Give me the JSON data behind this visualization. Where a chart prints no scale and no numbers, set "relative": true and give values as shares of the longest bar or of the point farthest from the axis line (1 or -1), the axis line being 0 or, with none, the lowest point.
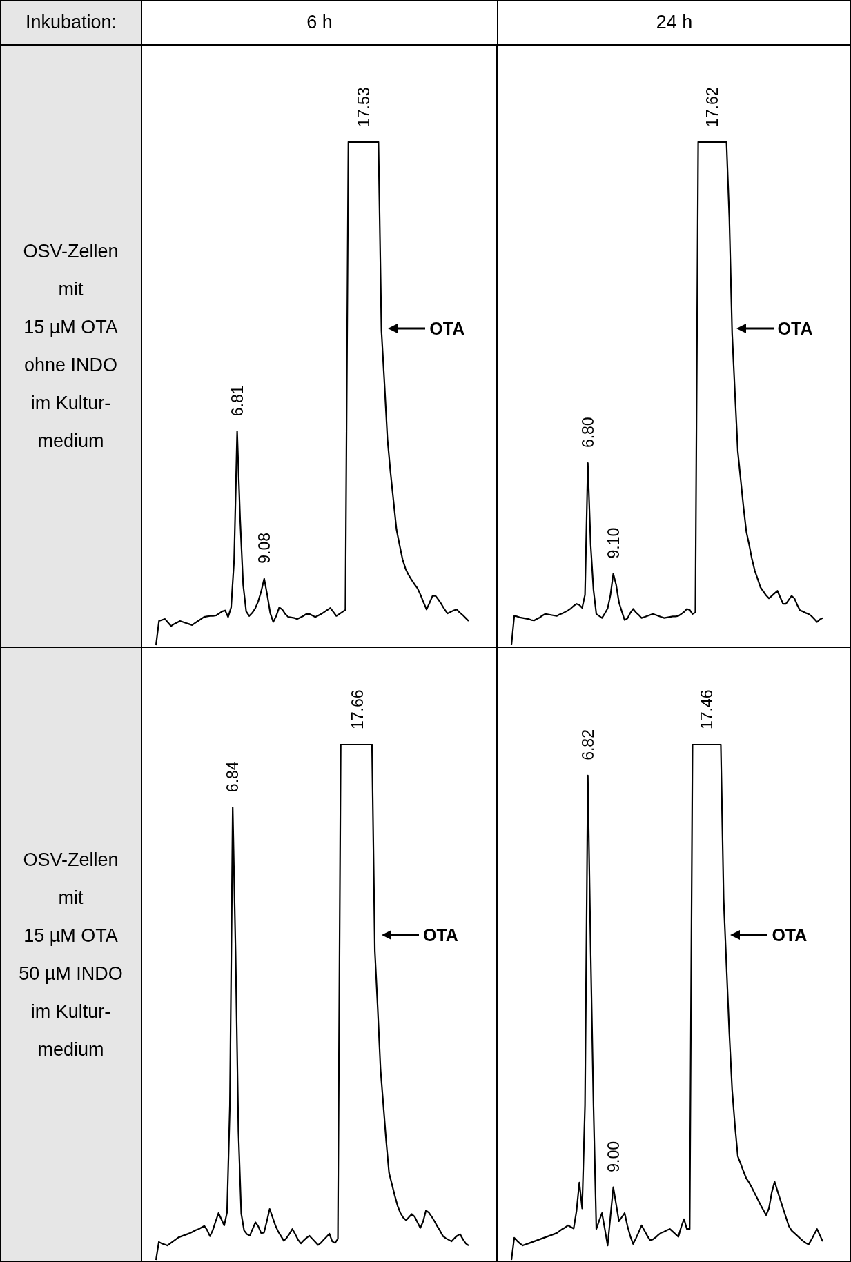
{
  "chart_data": [
    {
      "type": "other",
      "annotations": [
        "Inkubation:",
        "6 h",
        "24 h"
      ]
    },
    {
      "type": "other",
      "annotations": [
        "OSV-Zellen",
        "mit",
        "15 µM OTA",
        "ohne INDO",
        "im Kultur-",
        "medium"
      ]
    },
    {
      "type": "line",
      "relative": true,
      "marker": "none",
      "line_style": "solid",
      "color": "#000000",
      "categories": [
        null,
        null,
        null,
        null,
        null,
        null,
        null,
        null,
        null,
        null,
        null,
        null,
        null,
        null,
        null,
        null,
        null,
        null,
        null,
        null,
        null,
        null,
        null,
        null,
        null,
        null,
        null,
        null,
        null,
        null,
        null,
        null,
        null,
        null,
        null,
        null,
        null,
        null,
        null,
        null,
        null,
        null,
        null,
        null,
        null,
        null,
        null,
        null,
        null,
        null,
        null,
        null,
        null,
        null,
        null,
        null,
        null,
        null,
        null,
        null,
        null,
        null,
        null,
        null,
        null,
        null,
        null,
        null,
        null,
        null,
        null,
        null,
        null,
        null,
        null,
        null,
        null,
        null,
        null,
        null,
        null,
        null,
        null,
        null,
        null,
        null,
        null,
        null,
        null,
        null,
        null,
        null,
        null,
        null,
        null,
        null,
        null,
        null,
        null,
        null,
        null,
        null,
        null,
        null,
        null
      ],
      "values": [
        0,
        0.048,
        0.05,
        0.052,
        0.045,
        0.038,
        0.042,
        0.045,
        0.048,
        0.046,
        0.044,
        0.042,
        0.04,
        0.044,
        0.048,
        0.052,
        0.056,
        0.057,
        0.058,
        0.058,
        0.059,
        0.063,
        0.067,
        0.069,
        0.056,
        0.075,
        0.17,
        0.425,
        0.25,
        0.12,
        0.067,
        0.058,
        0.064,
        0.073,
        0.087,
        0.107,
        0.132,
        0.1,
        0.064,
        0.046,
        0.058,
        0.075,
        0.071,
        0.062,
        0.056,
        0.055,
        0.054,
        0.052,
        0.055,
        0.058,
        0.062,
        0.062,
        0.059,
        0.056,
        0.059,
        0.062,
        0.066,
        0.07,
        0.074,
        0.066,
        0.058,
        0.062,
        0.066,
        0.07,
        1,
        1,
        1,
        1,
        1,
        1,
        1,
        1,
        1,
        1,
        1,
        0.625,
        0.52,
        0.41,
        0.344,
        0.287,
        0.23,
        0.2,
        0.171,
        0.152,
        0.14,
        0.13,
        0.121,
        0.113,
        0.1,
        0.085,
        0.071,
        0.084,
        0.098,
        0.098,
        0.09,
        0.081,
        0.071,
        0.063,
        0.066,
        0.069,
        0.071,
        0.065,
        0.06,
        0.054,
        0.048
      ],
      "annotations": [
        {
          "text": "6.81",
          "y": 0.425
        },
        {
          "text": "9.08",
          "y": 0.132
        },
        {
          "text": "17.53",
          "y": 1
        },
        "OTA"
      ]
    },
    {
      "type": "line",
      "relative": true,
      "marker": "none",
      "line_style": "solid",
      "color": "#000000",
      "categories": [
        null,
        null,
        null,
        null,
        null,
        null,
        null,
        null,
        null,
        null,
        null,
        null,
        null,
        null,
        null,
        null,
        null,
        null,
        null,
        null,
        null,
        null,
        null,
        null,
        null,
        null,
        null,
        null,
        null,
        null,
        null,
        null,
        null,
        null,
        null,
        null,
        null,
        null,
        null,
        null,
        null,
        null,
        null,
        null,
        null,
        null,
        null,
        null,
        null,
        null,
        null,
        null,
        null,
        null,
        null,
        null,
        null,
        null,
        null,
        null,
        null,
        null,
        null,
        null,
        null,
        null,
        null,
        null,
        null,
        null,
        null,
        null,
        null,
        null,
        null,
        null,
        null,
        null,
        null,
        null,
        null,
        null,
        null,
        null,
        null,
        null,
        null,
        null,
        null,
        null,
        null,
        null,
        null,
        null,
        null,
        null,
        null,
        null,
        null,
        null,
        null,
        null,
        null,
        null,
        null,
        null,
        null,
        null,
        null,
        null,
        null
      ],
      "values": [
        0,
        0.058,
        0.057,
        0.055,
        0.054,
        0.053,
        0.052,
        0.05,
        0.049,
        0.052,
        0.055,
        0.059,
        0.062,
        0.061,
        0.06,
        0.059,
        0.058,
        0.061,
        0.063,
        0.066,
        0.069,
        0.073,
        0.078,
        0.082,
        0.08,
        0.074,
        0.1,
        0.362,
        0.2,
        0.11,
        0.062,
        0.058,
        0.054,
        0.063,
        0.073,
        0.1,
        0.142,
        0.12,
        0.085,
        0.067,
        0.05,
        0.053,
        0.064,
        0.072,
        0.065,
        0.06,
        0.054,
        0.056,
        0.058,
        0.06,
        0.062,
        0.06,
        0.058,
        0.056,
        0.054,
        0.055,
        0.056,
        0.057,
        0.057,
        0.058,
        0.062,
        0.066,
        0.072,
        0.07,
        0.062,
        0.065,
        1,
        1,
        1,
        1,
        1,
        1,
        1,
        1,
        1,
        1,
        1,
        0.85,
        0.62,
        0.5,
        0.385,
        0.33,
        0.275,
        0.226,
        0.2,
        0.171,
        0.148,
        0.132,
        0.115,
        0.107,
        0.099,
        0.093,
        0.098,
        0.103,
        0.108,
        0.095,
        0.082,
        0.082,
        0.09,
        0.098,
        0.093,
        0.08,
        0.069,
        0.067,
        0.064,
        0.062,
        0.058,
        0.052,
        0.046,
        0.051,
        0.054
      ],
      "annotations": [
        {
          "text": "6.80",
          "y": 0.362
        },
        {
          "text": "9.10",
          "y": 0.142
        },
        {
          "text": "17.62",
          "y": 1
        },
        "OTA"
      ]
    },
    {
      "type": "other",
      "annotations": [
        "OSV-Zellen",
        "mit",
        "15 µM OTA",
        "50 µM INDO",
        "im Kultur-",
        "medium"
      ]
    },
    {
      "type": "line",
      "relative": true,
      "marker": "none",
      "line_style": "solid",
      "color": "#000000",
      "categories": [
        null,
        null,
        null,
        null,
        null,
        null,
        null,
        null,
        null,
        null,
        null,
        null,
        null,
        null,
        null,
        null,
        null,
        null,
        null,
        null,
        null,
        null,
        null,
        null,
        null,
        null,
        null,
        null,
        null,
        null,
        null,
        null,
        null,
        null,
        null,
        null,
        null,
        null,
        null,
        null,
        null,
        null,
        null,
        null,
        null,
        null,
        null,
        null,
        null,
        null,
        null,
        null,
        null,
        null,
        null,
        null,
        null,
        null,
        null,
        null,
        null,
        null,
        null,
        null,
        null,
        null,
        null,
        null,
        null,
        null,
        null,
        null,
        null,
        null,
        null,
        null,
        null,
        null,
        null,
        null,
        null,
        null,
        null,
        null,
        null,
        null,
        null,
        null,
        null,
        null,
        null,
        null,
        null,
        null,
        null,
        null,
        null,
        null,
        null,
        null,
        null,
        null,
        null,
        null,
        null,
        null,
        null,
        null,
        null,
        null,
        null
      ],
      "values": [
        0,
        0.035,
        0.032,
        0.03,
        0.028,
        0.032,
        0.036,
        0.04,
        0.044,
        0.046,
        0.048,
        0.05,
        0.052,
        0.055,
        0.058,
        0.06,
        0.063,
        0.066,
        0.058,
        0.046,
        0.058,
        0.075,
        0.091,
        0.079,
        0.067,
        0.092,
        0.3,
        0.878,
        0.6,
        0.25,
        0.09,
        0.057,
        0.05,
        0.047,
        0.06,
        0.073,
        0.065,
        0.052,
        0.053,
        0.075,
        0.099,
        0.083,
        0.067,
        0.055,
        0.046,
        0.037,
        0.043,
        0.051,
        0.06,
        0.05,
        0.039,
        0.032,
        0.038,
        0.043,
        0.047,
        0.041,
        0.035,
        0.029,
        0.033,
        0.039,
        0.045,
        0.051,
        0.036,
        0.033,
        0.041,
        1,
        1,
        1,
        1,
        1,
        1,
        1,
        1,
        1,
        1,
        1,
        1,
        0.6,
        0.49,
        0.37,
        0.3,
        0.23,
        0.169,
        0.147,
        0.125,
        0.105,
        0.091,
        0.082,
        0.077,
        0.083,
        0.089,
        0.084,
        0.073,
        0.062,
        0.075,
        0.096,
        0.092,
        0.084,
        0.075,
        0.065,
        0.056,
        0.046,
        0.042,
        0.039,
        0.036,
        0.042,
        0.047,
        0.05,
        0.04,
        0.032,
        0.028
      ],
      "annotations": [
        {
          "text": "6.84",
          "y": 0.878
        },
        {
          "text": "17.66",
          "y": 1
        },
        "OTA"
      ]
    },
    {
      "type": "line",
      "relative": true,
      "marker": "none",
      "line_style": "solid",
      "color": "#000000",
      "categories": [
        null,
        null,
        null,
        null,
        null,
        null,
        null,
        null,
        null,
        null,
        null,
        null,
        null,
        null,
        null,
        null,
        null,
        null,
        null,
        null,
        null,
        null,
        null,
        null,
        null,
        null,
        null,
        null,
        null,
        null,
        null,
        null,
        null,
        null,
        null,
        null,
        null,
        null,
        null,
        null,
        null,
        null,
        null,
        null,
        null,
        null,
        null,
        null,
        null,
        null,
        null,
        null,
        null,
        null,
        null,
        null,
        null,
        null,
        null,
        null,
        null,
        null,
        null,
        null,
        null,
        null,
        null,
        null,
        null,
        null,
        null,
        null,
        null,
        null,
        null,
        null,
        null,
        null,
        null,
        null,
        null,
        null,
        null,
        null,
        null,
        null,
        null,
        null,
        null,
        null,
        null,
        null,
        null,
        null,
        null,
        null,
        null,
        null,
        null,
        null,
        null,
        null,
        null,
        null,
        null,
        null,
        null,
        null,
        null,
        null,
        null
      ],
      "values": [
        0,
        0.043,
        0.037,
        0.032,
        0.028,
        0.03,
        0.032,
        0.034,
        0.036,
        0.038,
        0.04,
        0.042,
        0.044,
        0.046,
        0.048,
        0.05,
        0.052,
        0.056,
        0.06,
        0.063,
        0.067,
        0.064,
        0.061,
        0.095,
        0.15,
        0.1,
        0.3,
        0.94,
        0.6,
        0.3,
        0.06,
        0.076,
        0.091,
        0.06,
        0.028,
        0.085,
        0.141,
        0.108,
        0.075,
        0.083,
        0.091,
        0.066,
        0.046,
        0.031,
        0.042,
        0.054,
        0.067,
        0.057,
        0.047,
        0.038,
        0.04,
        0.044,
        0.049,
        0.053,
        0.055,
        0.058,
        0.06,
        0.055,
        0.05,
        0.045,
        0.064,
        0.079,
        0.06,
        0.06,
        1,
        1,
        1,
        1,
        1,
        1,
        1,
        1,
        1,
        1,
        1,
        0.7,
        0.57,
        0.44,
        0.33,
        0.26,
        0.201,
        0.187,
        0.172,
        0.158,
        0.15,
        0.14,
        0.129,
        0.118,
        0.107,
        0.097,
        0.087,
        0.1,
        0.131,
        0.152,
        0.134,
        0.117,
        0.1,
        0.083,
        0.066,
        0.057,
        0.052,
        0.047,
        0.042,
        0.037,
        0.033,
        0.03,
        0.039,
        0.05,
        0.06,
        0.048,
        0.036
      ],
      "annotations": [
        {
          "text": "6.82",
          "y": 0.94
        },
        {
          "text": "9.00",
          "y": 0.141
        },
        {
          "text": "17.46",
          "y": 1
        },
        "OTA"
      ]
    }
  ]
}
